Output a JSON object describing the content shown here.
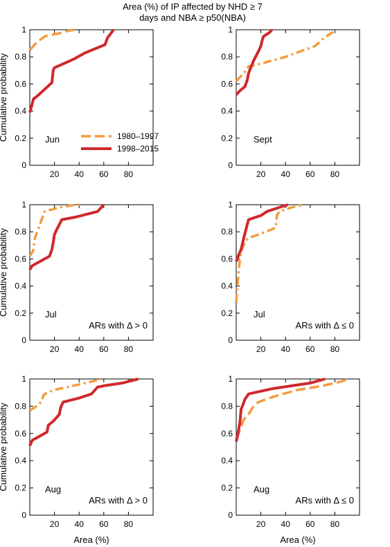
{
  "figure": {
    "title_line1": "Area (%)  of IP affected by NHD ≥ 7",
    "title_line2": "days and NBA ≥ p50(NBA)"
  },
  "legend": {
    "entries": [
      {
        "label": "1980–1997",
        "color": "#f39c3c",
        "style": "dashed"
      },
      {
        "label": "1998–2015",
        "color": "#d0282c",
        "style": "solid"
      }
    ]
  },
  "colors": {
    "early": "#f39c3c",
    "late": "#d0282c"
  },
  "chart_data": [
    {
      "type": "line",
      "panel": "jun",
      "month_label": "Jun",
      "note": "",
      "ylabel": "Cumulative probability",
      "xlabel": "",
      "xlim": [
        0,
        100
      ],
      "ylim": [
        0,
        1
      ],
      "xticks": [
        20,
        40,
        60,
        80
      ],
      "yticks": [
        0,
        0.2,
        0.4,
        0.6,
        0.8,
        1
      ],
      "show_legend": true,
      "series": [
        {
          "name": "1980–1997",
          "style": "dashed",
          "x": [
            0,
            3,
            6,
            9,
            12,
            16,
            22,
            30,
            36
          ],
          "y": [
            0.85,
            0.88,
            0.91,
            0.93,
            0.95,
            0.96,
            0.97,
            0.99,
            1.0
          ]
        },
        {
          "name": "1998–2015",
          "style": "solid",
          "x": [
            0,
            1,
            3,
            6,
            12,
            18,
            19,
            20,
            35,
            45,
            61,
            63,
            68
          ],
          "y": [
            0.39,
            0.42,
            0.49,
            0.51,
            0.56,
            0.61,
            0.7,
            0.72,
            0.78,
            0.83,
            0.89,
            0.94,
            1.0
          ]
        }
      ]
    },
    {
      "type": "line",
      "panel": "sept",
      "month_label": "Sept",
      "note": "",
      "ylabel": "",
      "xlabel": "",
      "xlim": [
        0,
        100
      ],
      "ylim": [
        0,
        1
      ],
      "xticks": [
        20,
        40,
        60,
        80
      ],
      "yticks": [
        0,
        0.2,
        0.4,
        0.6,
        0.8,
        1
      ],
      "show_legend": false,
      "series": [
        {
          "name": "1980–1997",
          "style": "dashdot",
          "x": [
            0,
            2,
            5,
            8,
            10,
            20,
            40,
            55,
            64,
            70,
            81
          ],
          "y": [
            0.62,
            0.64,
            0.67,
            0.7,
            0.73,
            0.75,
            0.8,
            0.85,
            0.88,
            0.93,
            1.0
          ]
        },
        {
          "name": "1998–2015",
          "style": "solid",
          "x": [
            0,
            3,
            7,
            9,
            10,
            14,
            18,
            20,
            21,
            22,
            27,
            29
          ],
          "y": [
            0.52,
            0.55,
            0.58,
            0.63,
            0.68,
            0.77,
            0.84,
            0.88,
            0.92,
            0.95,
            0.98,
            1.0
          ]
        }
      ]
    },
    {
      "type": "line",
      "panel": "jul-pos",
      "month_label": "Jul",
      "note": "ARs with Δ > 0",
      "ylabel": "Cumulative probability",
      "xlabel": "",
      "xlim": [
        0,
        100
      ],
      "ylim": [
        0,
        1
      ],
      "xticks": [
        20,
        40,
        60,
        80
      ],
      "yticks": [
        0,
        0.2,
        0.4,
        0.6,
        0.8,
        1
      ],
      "show_legend": false,
      "series": [
        {
          "name": "1980–1997",
          "style": "dashdot",
          "x": [
            0,
            2,
            3,
            4,
            6,
            8,
            10,
            12,
            16,
            20,
            24,
            30,
            38,
            42
          ],
          "y": [
            0.62,
            0.65,
            0.67,
            0.75,
            0.8,
            0.85,
            0.9,
            0.95,
            0.96,
            0.97,
            0.98,
            0.99,
            1.0,
            1.0
          ]
        },
        {
          "name": "1998–2015",
          "style": "solid",
          "x": [
            0,
            2,
            6,
            12,
            16,
            18,
            19,
            20,
            22,
            26,
            38,
            55,
            60
          ],
          "y": [
            0.52,
            0.55,
            0.57,
            0.6,
            0.62,
            0.67,
            0.72,
            0.78,
            0.82,
            0.89,
            0.91,
            0.95,
            1.0
          ]
        }
      ]
    },
    {
      "type": "line",
      "panel": "jul-neg",
      "month_label": "Jul",
      "note": "ARs with Δ ≤ 0",
      "ylabel": "",
      "xlabel": "",
      "xlim": [
        0,
        100
      ],
      "ylim": [
        0,
        1
      ],
      "xticks": [
        20,
        40,
        60,
        80
      ],
      "yticks": [
        0,
        0.2,
        0.4,
        0.6,
        0.8,
        1
      ],
      "show_legend": false,
      "series": [
        {
          "name": "1980–1997",
          "style": "dashdot",
          "x": [
            0,
            1,
            2,
            3,
            5,
            8,
            12,
            18,
            24,
            32,
            33,
            35,
            45,
            55
          ],
          "y": [
            0.28,
            0.4,
            0.5,
            0.6,
            0.68,
            0.74,
            0.76,
            0.78,
            0.8,
            0.83,
            0.92,
            0.95,
            0.98,
            1.0
          ]
        },
        {
          "name": "1998–2015",
          "style": "solid",
          "x": [
            0,
            2,
            4,
            6,
            8,
            10,
            20,
            25,
            35,
            42
          ],
          "y": [
            0.58,
            0.63,
            0.67,
            0.75,
            0.82,
            0.89,
            0.92,
            0.95,
            0.98,
            1.0
          ]
        }
      ]
    },
    {
      "type": "line",
      "panel": "aug-pos",
      "month_label": "Aug",
      "note": "ARs with Δ > 0",
      "ylabel": "Cumulative probability",
      "xlabel": "Area (%)",
      "xlim": [
        0,
        100
      ],
      "ylim": [
        0,
        1
      ],
      "xticks": [
        20,
        40,
        60,
        80
      ],
      "yticks": [
        0,
        0.2,
        0.4,
        0.6,
        0.8,
        1
      ],
      "show_legend": false,
      "series": [
        {
          "name": "1980–1997",
          "style": "dashdot",
          "x": [
            0,
            4,
            8,
            10,
            11,
            14,
            20,
            30,
            40,
            50,
            58
          ],
          "y": [
            0.77,
            0.79,
            0.82,
            0.84,
            0.88,
            0.9,
            0.92,
            0.94,
            0.96,
            0.98,
            1.0
          ]
        },
        {
          "name": "1998–2015",
          "style": "solid",
          "x": [
            0,
            2,
            6,
            10,
            14,
            15,
            19,
            22,
            24,
            25,
            27,
            40,
            50,
            55,
            60,
            75,
            88
          ],
          "y": [
            0.51,
            0.55,
            0.57,
            0.59,
            0.61,
            0.66,
            0.69,
            0.72,
            0.74,
            0.79,
            0.83,
            0.86,
            0.89,
            0.94,
            0.95,
            0.97,
            1.0
          ]
        }
      ]
    },
    {
      "type": "line",
      "panel": "aug-neg",
      "month_label": "Aug",
      "note": "ARs with Δ ≤ 0",
      "ylabel": "",
      "xlabel": "Area (%)",
      "xlim": [
        0,
        100
      ],
      "ylim": [
        0,
        1
      ],
      "xticks": [
        20,
        40,
        60,
        80
      ],
      "yticks": [
        0,
        0.2,
        0.4,
        0.6,
        0.8,
        1
      ],
      "show_legend": false,
      "series": [
        {
          "name": "1980–1997",
          "style": "dashed",
          "x": [
            0,
            2,
            4,
            6,
            10,
            14,
            18,
            24,
            34,
            50,
            70,
            85,
            91
          ],
          "y": [
            0.56,
            0.6,
            0.65,
            0.7,
            0.74,
            0.8,
            0.83,
            0.85,
            0.88,
            0.92,
            0.95,
            0.98,
            1.0
          ]
        },
        {
          "name": "1998–2015",
          "style": "solid",
          "x": [
            0,
            1,
            3,
            4,
            5,
            7,
            10,
            20,
            30,
            45,
            60,
            72
          ],
          "y": [
            0.54,
            0.58,
            0.68,
            0.78,
            0.8,
            0.85,
            0.89,
            0.91,
            0.93,
            0.95,
            0.97,
            1.0
          ]
        }
      ]
    }
  ]
}
